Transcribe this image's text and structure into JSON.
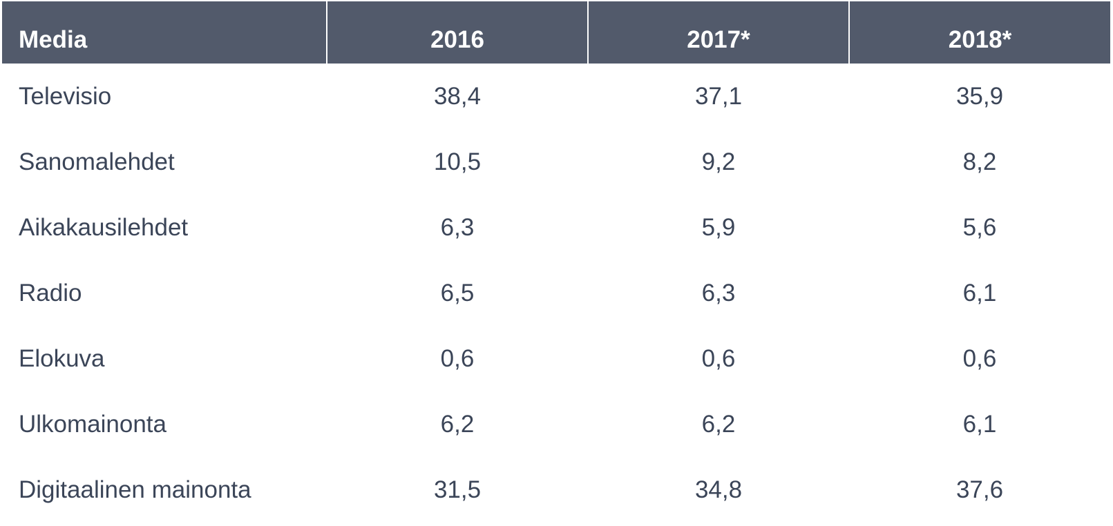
{
  "chart_data": {
    "type": "table",
    "columns": [
      "Media",
      "2016",
      "2017*",
      "2018*"
    ],
    "rows": [
      [
        "Televisio",
        "38,4",
        "37,1",
        "35,9"
      ],
      [
        "Sanomalehdet",
        "10,5",
        "9,2",
        "8,2"
      ],
      [
        "Aikakausilehdet",
        "6,3",
        "5,9",
        "5,6"
      ],
      [
        "Radio",
        "6,5",
        "6,3",
        "6,1"
      ],
      [
        "Elokuva",
        "0,6",
        "0,6",
        "0,6"
      ],
      [
        "Ulkomainonta",
        "6,2",
        "6,2",
        "6,1"
      ],
      [
        "Digitaalinen mainonta",
        "31,5",
        "34,8",
        "37,6"
      ]
    ],
    "colors": {
      "header_bg": "#525a6b",
      "header_text": "#ffffff",
      "body_text": "#3b4558"
    }
  }
}
